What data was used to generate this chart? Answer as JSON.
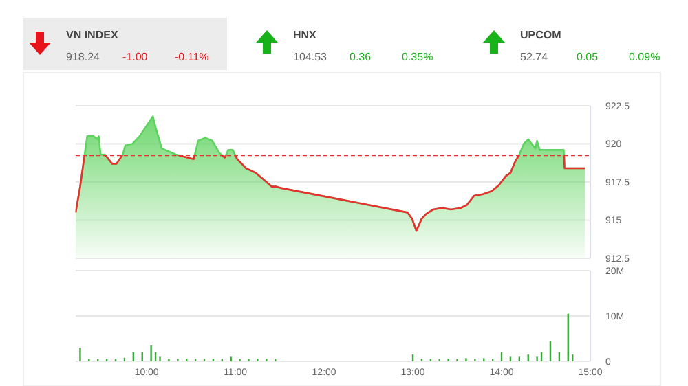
{
  "chart_data": [
    {
      "type": "other",
      "categories": [
        "VN INDEX",
        "HNX",
        "UPCOM"
      ],
      "values": [
        -1.0,
        0.36,
        0.05
      ],
      "value_labels": [
        "-1.00",
        "0.36",
        "0.05"
      ],
      "annotations": [
        "918.24",
        "-0.11%",
        "104.53",
        "0.35%",
        "52.74",
        "0.09%"
      ]
    },
    {
      "type": "area",
      "xlim": [
        9.2,
        15
      ],
      "ylim": [
        912.5,
        922.5
      ],
      "yticks": [
        922.5,
        920,
        917.5,
        915,
        912.5
      ],
      "grid": "y",
      "tick_labels": "y",
      "x": [
        9.2,
        9.25,
        9.33,
        9.4,
        9.45,
        9.46,
        9.48,
        9.53,
        9.61,
        9.66,
        9.73,
        9.76,
        9.84,
        9.92,
        10.0,
        10.07,
        10.1,
        10.17,
        10.33,
        10.46,
        10.53,
        10.58,
        10.66,
        10.74,
        10.82,
        10.88,
        10.92,
        10.97,
        11.02,
        11.12,
        11.23,
        11.33,
        11.41,
        11.46,
        11.52,
        12.94,
        12.99,
        13.04,
        13.1,
        13.15,
        13.23,
        13.33,
        13.43,
        13.54,
        13.61,
        13.69,
        13.79,
        13.89,
        13.97,
        14.05,
        14.1,
        14.15,
        14.2,
        14.25,
        14.3,
        14.38,
        14.4,
        14.43,
        14.66,
        14.7,
        14.71,
        14.94
      ],
      "series": [
        {
          "color": "#5fd35f",
          "values": [
            915.5,
            917.2,
            920.5,
            920.5,
            920.3,
            920.5,
            919.3,
            919.3,
            918.7,
            918.7,
            919.3,
            919.9,
            920,
            920.5,
            921.2,
            921.8,
            921.1,
            919.7,
            919.3,
            919.1,
            919,
            920.2,
            920.4,
            920.2,
            919.4,
            919.1,
            919.6,
            919.6,
            919,
            918.4,
            918.1,
            917.6,
            917.2,
            917.2,
            917.1,
            915.5,
            915.1,
            914.3,
            915.1,
            915.4,
            915.7,
            915.8,
            915.7,
            915.8,
            916,
            916.6,
            916.7,
            916.9,
            917.3,
            917.9,
            918.1,
            918.8,
            919.3,
            920,
            920.3,
            919.7,
            920.2,
            919.6,
            919.6,
            919.6,
            918.4,
            918.4
          ]
        }
      ],
      "ref_lines": [
        {
          "axis": "y",
          "value": 919.24,
          "color": "#e83030",
          "line_style": "dashed"
        }
      ]
    },
    {
      "type": "bar",
      "xlim": [
        9.2,
        15
      ],
      "ylim": [
        0,
        20
      ],
      "yticks": [
        {
          "value": 20,
          "label": "20M"
        },
        {
          "value": 10,
          "label": "10M"
        },
        0
      ],
      "xticks": [
        {
          "value": 10,
          "label": "10:00"
        },
        {
          "value": 11,
          "label": "11:00"
        },
        {
          "value": 12,
          "label": "12:00"
        },
        {
          "value": 13,
          "label": "13:00"
        },
        {
          "value": 14,
          "label": "14:00"
        },
        {
          "value": 15,
          "label": "15:00"
        }
      ],
      "grid": "y",
      "x": [
        9.25,
        9.35,
        9.45,
        9.55,
        9.65,
        9.75,
        9.85,
        9.95,
        10.05,
        10.1,
        10.15,
        10.25,
        10.35,
        10.45,
        10.55,
        10.65,
        10.75,
        10.85,
        10.95,
        11.05,
        11.15,
        11.25,
        11.35,
        11.45,
        13.0,
        13.1,
        13.2,
        13.3,
        13.4,
        13.5,
        13.6,
        13.7,
        13.8,
        13.9,
        14.0,
        14.1,
        14.2,
        14.3,
        14.4,
        14.45,
        14.55,
        14.65,
        14.75,
        14.8
      ],
      "series": [
        {
          "color": "#3aa83a",
          "values": [
            3,
            0.5,
            0.5,
            0.5,
            0.5,
            0.8,
            2,
            2,
            3.5,
            2,
            1,
            0.5,
            0.5,
            0.6,
            0.5,
            0.5,
            0.6,
            0.5,
            1,
            0.5,
            0.5,
            0.6,
            0.5,
            0.5,
            1.5,
            0.5,
            0.5,
            0.5,
            0.6,
            0.5,
            0.7,
            0.6,
            0.7,
            0.6,
            2,
            1,
            1,
            1.5,
            1,
            2,
            4.5,
            2,
            10.5,
            1.5
          ]
        }
      ]
    }
  ]
}
